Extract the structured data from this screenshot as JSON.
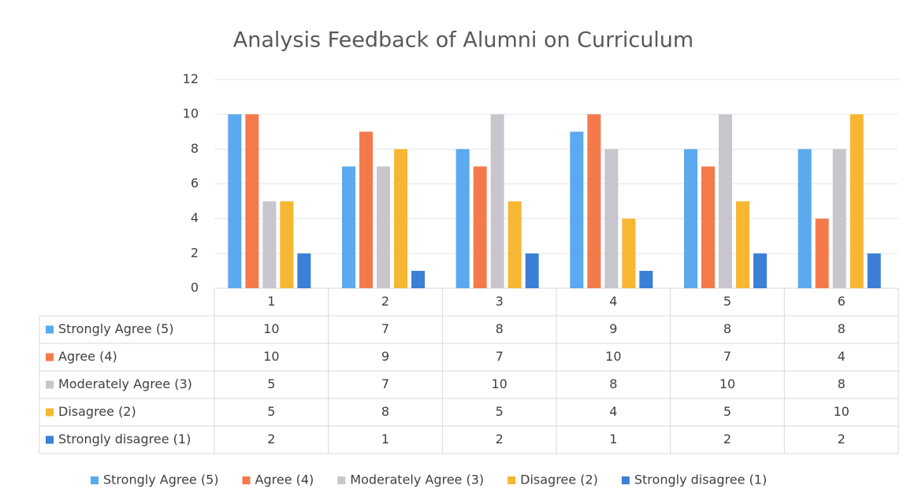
{
  "chart_data": {
    "type": "bar",
    "title": "Analysis Feedback of Alumni on Curriculum",
    "categories": [
      "1",
      "2",
      "3",
      "4",
      "5",
      "6"
    ],
    "series": [
      {
        "name": "Strongly Agree (5)",
        "color": "#5ba9ee",
        "values": [
          10,
          7,
          8,
          9,
          8,
          8
        ]
      },
      {
        "name": "Agree (4)",
        "color": "#f47a4c",
        "values": [
          10,
          9,
          7,
          10,
          7,
          4
        ]
      },
      {
        "name": "Moderately Agree (3)",
        "color": "#c9c5cd",
        "values": [
          5,
          7,
          10,
          8,
          10,
          8
        ]
      },
      {
        "name": "Disagree (2)",
        "color": "#f7b733",
        "values": [
          5,
          8,
          5,
          4,
          5,
          10
        ]
      },
      {
        "name": "Strongly disagree (1)",
        "color": "#3c7fd6",
        "values": [
          2,
          1,
          2,
          1,
          2,
          2
        ]
      }
    ],
    "ylim": [
      0,
      12
    ],
    "yticks": [
      0,
      2,
      4,
      6,
      8,
      10,
      12
    ],
    "grid": true,
    "legend": "bottom"
  }
}
